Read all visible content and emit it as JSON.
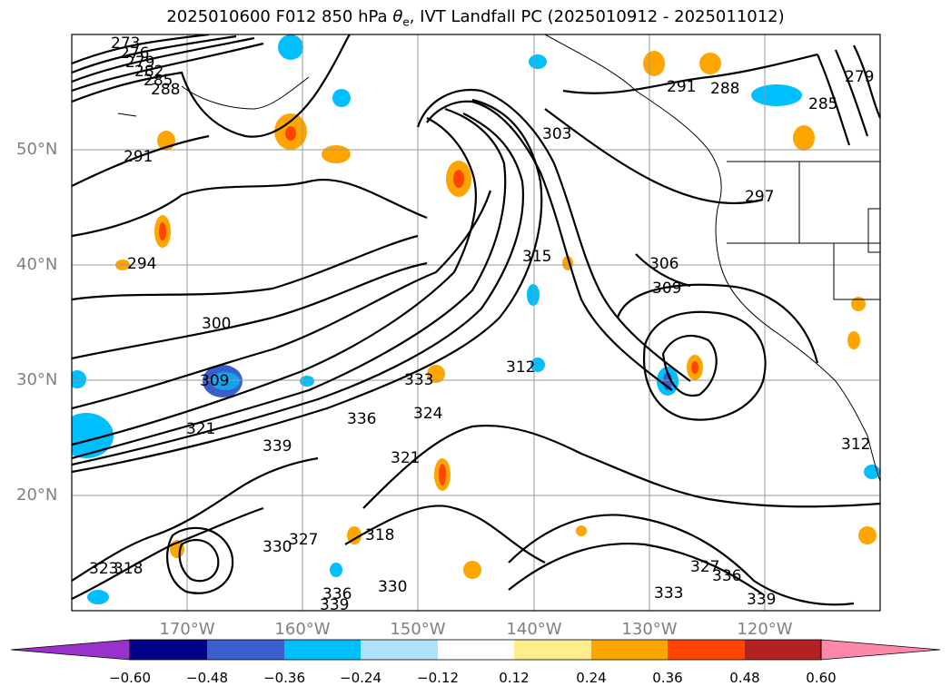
{
  "title": "2025010600 F012 850 hPa θe, IVT Landfall PC (2025010912 - 2025011012)",
  "title_parts": {
    "main": "2025010600 F012 850 hPa ",
    "symbol": "θ",
    "sub": "e",
    "rest": ", IVT Landfall PC (2025010912 - 2025011012)"
  },
  "map": {
    "projection": "PlateCarree",
    "extent": {
      "lon_min": -180,
      "lon_max": -110,
      "lat_min": 10,
      "lat_max": 60
    },
    "gridlines": true,
    "lat_labels": [
      "50°N",
      "40°N",
      "30°N",
      "20°N"
    ],
    "lon_labels": [
      "170°W",
      "160°W",
      "150°W",
      "140°W",
      "130°W",
      "120°W"
    ]
  },
  "contour_labels": [
    "273",
    "276",
    "279",
    "282",
    "285",
    "288",
    "291",
    "294",
    "300",
    "309",
    "321",
    "339",
    "330",
    "327",
    "323",
    "318",
    "336",
    "324",
    "333",
    "315",
    "303",
    "306",
    "309",
    "312",
    "297",
    "291",
    "288",
    "285",
    "279",
    "327",
    "336",
    "339",
    "333",
    "312",
    "330",
    "336",
    "339",
    "321",
    "318"
  ],
  "colorbar": {
    "extend": "both",
    "ticks": [
      "−0.60",
      "−0.48",
      "−0.36",
      "−0.24",
      "−0.12",
      "0.12",
      "0.24",
      "0.36",
      "0.48",
      "0.60"
    ],
    "colors": [
      "#9932CC",
      "#00008B",
      "#3A5FCD",
      "#00BFFF",
      "#B0E2FF",
      "#FFFFFF",
      "#FFEC8B",
      "#FFA500",
      "#FF4500",
      "#B22222",
      "#FF88AA"
    ]
  }
}
